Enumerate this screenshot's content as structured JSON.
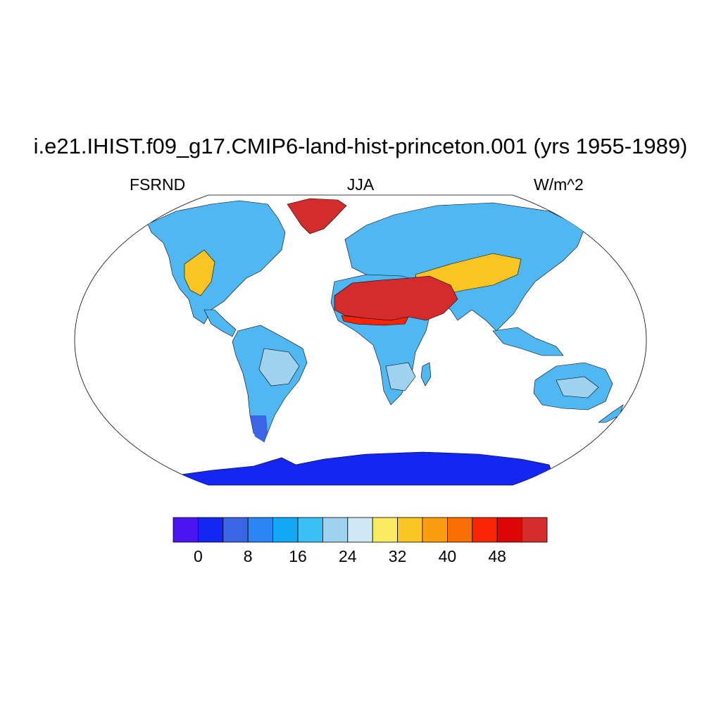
{
  "figure": {
    "title": "i.e21.IHIST.f09_g17.CMIP6-land-hist-princeton.001 (yrs 1955-1989)",
    "left_label": "FSRND",
    "center_label": "JJA",
    "right_label": "W/m^2"
  },
  "colorbar": {
    "colors": [
      "#4a14f0",
      "#1426f2",
      "#3c64e6",
      "#2a86f4",
      "#13a8f6",
      "#38c0f4",
      "#9fd2ee",
      "#cfe8f6",
      "#fbeb62",
      "#fac522",
      "#fa9d0e",
      "#fa6e06",
      "#fa2406",
      "#dc0606",
      "#d42c2c"
    ],
    "tick_labels": [
      "0",
      "8",
      "16",
      "24",
      "32",
      "40",
      "48"
    ]
  },
  "map_colors": {
    "ocean": "#ffffff",
    "land_default": "#4fb8f2",
    "land_light": "#9fd2ee",
    "antarctica": "#1426f2",
    "greenland": "#d42c2c",
    "desert_hot": "#d42c2c",
    "desert_warm": "#fac522",
    "desert_edge": "#fa2406"
  }
}
